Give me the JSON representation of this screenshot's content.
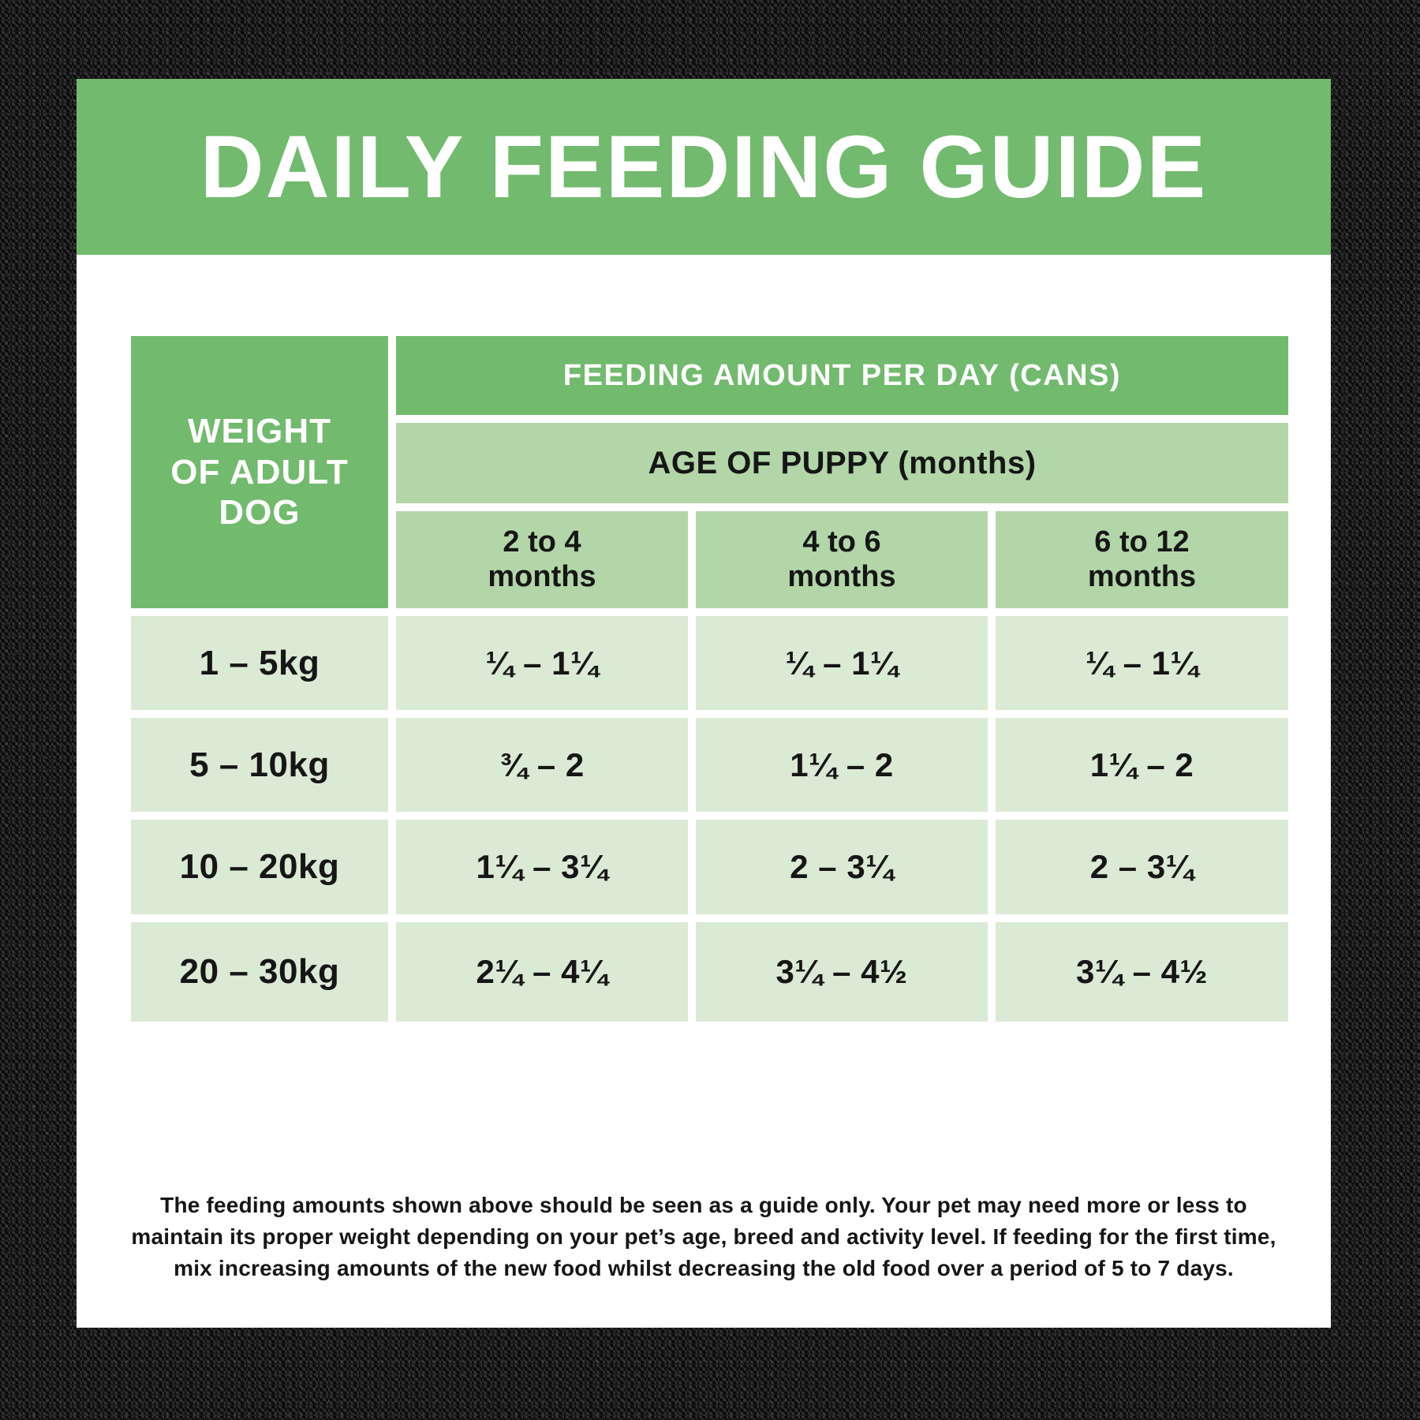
{
  "title": "DAILY FEEDING GUIDE",
  "colors": {
    "primary_green": "#72ba6e",
    "medium_green": "#b2d6a8",
    "light_green": "#dbead5",
    "card_white": "#ffffff",
    "text_black": "#161616",
    "background_black": "#232323"
  },
  "table": {
    "corner": {
      "line1": "WEIGHT",
      "line2": "OF ADULT",
      "line3": "DOG"
    },
    "top_header": "FEEDING AMOUNT PER DAY (CANS)",
    "age_header": "AGE OF PUPPY (months)",
    "columns": [
      {
        "line1": "2 to 4",
        "line2": "months"
      },
      {
        "line1": "4 to 6",
        "line2": "months"
      },
      {
        "line1": "6 to 12",
        "line2": "months"
      }
    ],
    "rows": [
      {
        "weight": "1 – 5kg",
        "values": [
          "¼ – 1¼",
          "¼ – 1¼",
          "¼ – 1¼"
        ]
      },
      {
        "weight": "5 – 10kg",
        "values": [
          "¾ – 2",
          "1¼ – 2",
          "1¼ – 2"
        ]
      },
      {
        "weight": "10 – 20kg",
        "values": [
          "1¼ – 3¼",
          "2 – 3¼",
          "2 – 3¼"
        ]
      },
      {
        "weight": "20 – 30kg",
        "values": [
          "2¼ – 4¼",
          "3¼ – 4½",
          "3¼ – 4½"
        ]
      }
    ]
  },
  "footnote": {
    "line1": "The feeding amounts shown above should be seen as a guide only. Your pet may need more or less to",
    "line2": "maintain its proper weight depending on your pet’s age, breed and activity level. If feeding for the first time,",
    "line3": "mix increasing amounts of the new food whilst decreasing the old food over a period of 5 to 7 days."
  },
  "chart_data": {
    "type": "table",
    "title": "DAILY FEEDING GUIDE",
    "row_header": "WEIGHT OF ADULT DOG",
    "column_group_header": "FEEDING AMOUNT PER DAY (CANS)",
    "column_subgroup_header": "AGE OF PUPPY (months)",
    "columns": [
      "2 to 4 months",
      "4 to 6 months",
      "6 to 12 months"
    ],
    "rows": [
      {
        "weight": "1 – 5kg",
        "cans_per_day": [
          "¼ – 1¼",
          "¼ – 1¼",
          "¼ – 1¼"
        ]
      },
      {
        "weight": "5 – 10kg",
        "cans_per_day": [
          "¾ – 2",
          "1¼ – 2",
          "1¼ – 2"
        ]
      },
      {
        "weight": "10 – 20kg",
        "cans_per_day": [
          "1¼ – 3¼",
          "2 – 3¼",
          "2 – 3¼"
        ]
      },
      {
        "weight": "20 – 30kg",
        "cans_per_day": [
          "2¼ – 4¼",
          "3¼ – 4½",
          "3¼ – 4½"
        ]
      }
    ]
  }
}
